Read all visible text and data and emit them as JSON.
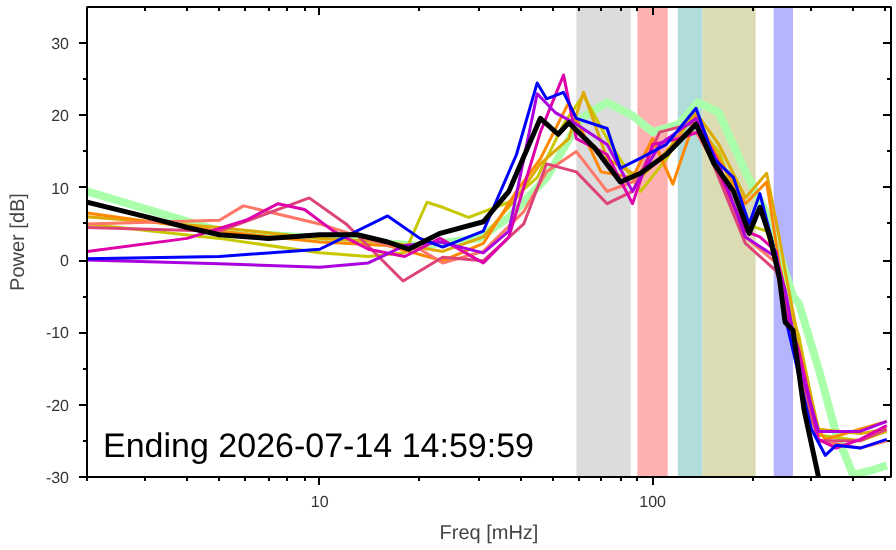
{
  "chart_data": {
    "type": "line",
    "xlabel": "Freq [mHz]",
    "ylabel": "Power [dB]",
    "log": "x",
    "xlim": [
      2,
      520
    ],
    "ylim": [
      -30,
      35
    ],
    "xticks": [
      {
        "value": 2,
        "label": null
      },
      {
        "value": 3,
        "label": null
      },
      {
        "value": 4,
        "label": null
      },
      {
        "value": 5,
        "label": null
      },
      {
        "value": 6,
        "label": null
      },
      {
        "value": 7,
        "label": null
      },
      {
        "value": 8,
        "label": null
      },
      {
        "value": 9,
        "label": null
      },
      10,
      {
        "value": 20,
        "label": null
      },
      {
        "value": 30,
        "label": null
      },
      {
        "value": 40,
        "label": null
      },
      {
        "value": 50,
        "label": null
      },
      {
        "value": 60,
        "label": null
      },
      {
        "value": 70,
        "label": null
      },
      {
        "value": 80,
        "label": null
      },
      {
        "value": 90,
        "label": null
      },
      100,
      {
        "value": 200,
        "label": null
      },
      {
        "value": 300,
        "label": null
      },
      {
        "value": 400,
        "label": null
      },
      {
        "value": 500,
        "label": null
      }
    ],
    "yticks": [
      -30,
      {
        "value": -25,
        "label": null
      },
      -20,
      {
        "value": -15,
        "label": null
      },
      -10,
      {
        "value": -5,
        "label": null
      },
      0,
      {
        "value": 5,
        "label": null
      },
      10,
      {
        "value": 15,
        "label": null
      },
      20,
      {
        "value": 25,
        "label": null
      },
      30
    ],
    "grid": false,
    "line_style": "solid",
    "marker": "none",
    "annotations": [
      "Ending 2026-07-14 14:59:59"
    ],
    "bands": [
      {
        "axis": "x",
        "from": 59,
        "to": 86,
        "color": "#dcdcdc"
      },
      {
        "axis": "x",
        "from": 90,
        "to": 111,
        "color": "#ffb0b0"
      },
      {
        "axis": "x",
        "from": 119,
        "to": 141,
        "color": "#b0dcdc"
      },
      {
        "axis": "x",
        "from": 141,
        "to": 204,
        "color": "#dcdcb4"
      },
      {
        "axis": "x",
        "from": 231,
        "to": 264,
        "color": "#b4b4ff"
      }
    ],
    "series": [
      {
        "color": "#aaffaa",
        "x": [
          2,
          5,
          20,
          30,
          37,
          48,
          61,
          73,
          87,
          100,
          120,
          137,
          158,
          190,
          220,
          264,
          275,
          315,
          356,
          400,
          460,
          505
        ],
        "values": [
          9.5,
          4,
          2,
          3,
          5.9,
          11.4,
          19.6,
          21.8,
          20,
          17.7,
          18.8,
          21.8,
          20.4,
          12.2,
          6.4,
          -5,
          -6,
          -15,
          -24,
          -29.7,
          -29,
          -28.4
        ]
      },
      {
        "color": "#c8c800",
        "x": [
          2,
          5,
          10,
          14,
          18,
          21,
          23.4,
          28,
          37,
          45,
          54,
          62,
          73,
          92,
          110,
          130,
          158,
          190,
          220,
          250,
          275,
          315,
          420,
          505
        ],
        "values": [
          5,
          3,
          1,
          0.5,
          1,
          8,
          7.3,
          5.9,
          8,
          11.4,
          18.8,
          22.8,
          16.8,
          9.5,
          14,
          19.6,
          15,
          5,
          4,
          -5,
          -10.5,
          -24.2,
          -25,
          -23.7
        ]
      },
      {
        "color": "#dcaa00",
        "x": [
          2,
          5,
          10,
          16,
          23.4,
          31,
          39,
          46,
          56,
          62,
          73,
          92,
          110,
          135,
          158,
          190,
          220,
          240,
          250,
          275,
          315,
          420,
          505
        ],
        "values": [
          6,
          4.5,
          3,
          2.5,
          1.2,
          3.2,
          8.6,
          13.3,
          16.8,
          23.2,
          14,
          11.4,
          15,
          20.4,
          16,
          8.6,
          12,
          3.2,
          -1.5,
          -11.4,
          -23.4,
          -24,
          -23.4
        ]
      },
      {
        "color": "#ff8800",
        "x": [
          2,
          5,
          10,
          16,
          23.4,
          31,
          39,
          46,
          56,
          70,
          87,
          100,
          115,
          135,
          158,
          190,
          220,
          240,
          250,
          275,
          300,
          330,
          420,
          505
        ],
        "values": [
          6.5,
          4,
          2.5,
          2,
          -0.1,
          2.3,
          9.5,
          14,
          21.8,
          12.2,
          11.4,
          16.8,
          10.5,
          20,
          14,
          7.8,
          10.8,
          -0.4,
          -4.2,
          -15,
          -22.3,
          -24.8,
          -23.4,
          -22.3
        ]
      },
      {
        "color": "#ff7766",
        "x": [
          2,
          5,
          5.9,
          10,
          16,
          20,
          23.4,
          31,
          41,
          48,
          59,
          73,
          87,
          110,
          135,
          158,
          190,
          235,
          250,
          275,
          315,
          420,
          505
        ],
        "values": [
          5,
          5.5,
          7.5,
          5,
          2,
          1.5,
          -0.4,
          1.2,
          6.7,
          12.2,
          15,
          9.5,
          10.8,
          16.8,
          17.7,
          12.2,
          3.2,
          -0.4,
          -4.2,
          -16,
          -25,
          -26,
          -25
        ]
      },
      {
        "color": "#dd4477",
        "x": [
          2,
          5,
          9.3,
          12,
          17.8,
          23.4,
          31,
          41,
          48,
          59,
          73,
          87,
          105,
          135,
          158,
          190,
          235,
          250,
          275,
          315,
          420,
          505
        ],
        "values": [
          4.5,
          4,
          8.6,
          5,
          -2.9,
          0.4,
          -0.1,
          5,
          13.3,
          12.2,
          7.8,
          9.5,
          17.7,
          19,
          11.4,
          2.3,
          -1.5,
          -5.9,
          -15,
          -25,
          -25,
          -23.4
        ]
      },
      {
        "color": "#dd00aa",
        "x": [
          2,
          4,
          6,
          7.5,
          9,
          11,
          14,
          18,
          23,
          31,
          37,
          46,
          54,
          59,
          73,
          87,
          100,
          120,
          137,
          158,
          190,
          210,
          235,
          250,
          275,
          315,
          356,
          420,
          505
        ],
        "values": [
          1.2,
          3,
          5.5,
          7.8,
          7,
          4,
          1.5,
          0.5,
          3,
          -0.4,
          3.2,
          17.7,
          25.6,
          16.8,
          14.6,
          7.8,
          16,
          16.8,
          17.7,
          12.2,
          4,
          3.2,
          1.2,
          -7,
          -12.5,
          -24.8,
          -26,
          -24.8,
          -22.9
        ]
      },
      {
        "color": "#aa00dd",
        "x": [
          2,
          5,
          10,
          14,
          18,
          23,
          31,
          37,
          45,
          51,
          59,
          73,
          87,
          105,
          135,
          158,
          190,
          235,
          250,
          275,
          315,
          420,
          505
        ],
        "values": [
          0,
          -0.5,
          -1,
          -0.4,
          2,
          2.5,
          1,
          4,
          23,
          20.4,
          18.8,
          16,
          9.5,
          16,
          19.6,
          13.3,
          3.2,
          0.4,
          -4.2,
          -14.2,
          -23.7,
          -23.7,
          -22.3
        ]
      },
      {
        "color": "#0000ff",
        "x": [
          2,
          5,
          10,
          16,
          20,
          23.4,
          31,
          39,
          45,
          48,
          54,
          59,
          73,
          80,
          92,
          110,
          135,
          153,
          175,
          195,
          210,
          235,
          250,
          275,
          300,
          330,
          356,
          420,
          505
        ],
        "values": [
          0.2,
          0.5,
          1.5,
          6.1,
          3,
          1.8,
          4,
          14.6,
          24.5,
          22.3,
          23.2,
          19.6,
          18.2,
          12.7,
          14.1,
          16,
          21,
          14,
          11.4,
          5,
          9.2,
          0.4,
          -7.8,
          -16,
          -23.4,
          -27,
          -25.6,
          -26,
          -24.8
        ]
      },
      {
        "color": "#000000",
        "x": [
          2,
          3,
          4,
          5,
          7,
          10,
          13,
          16,
          18.5,
          23,
          31,
          37,
          46,
          52,
          56,
          67,
          80,
          92,
          110,
          135,
          153,
          175,
          195,
          210,
          225,
          240,
          250,
          264,
          285,
          315
        ],
        "values": [
          8,
          6,
          4.5,
          3.5,
          3,
          3.5,
          3.5,
          2.5,
          1.5,
          3.7,
          5.3,
          9.5,
          19.6,
          17.4,
          19,
          15.5,
          10.8,
          12,
          14.6,
          18.8,
          13.3,
          9.5,
          3.7,
          7.3,
          3.2,
          -2.3,
          -8.6,
          -9.7,
          -20.7,
          -30
        ]
      }
    ]
  }
}
